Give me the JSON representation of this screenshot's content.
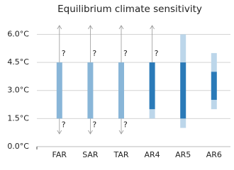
{
  "chart_data": {
    "type": "range",
    "title": "Equilibrium climate sensitivity",
    "categories": [
      "FAR",
      "SAR",
      "TAR",
      "AR4",
      "AR5",
      "AR6"
    ],
    "likely_low": [
      1.5,
      1.5,
      1.5,
      2.0,
      1.5,
      2.5
    ],
    "likely_high": [
      4.5,
      4.5,
      4.5,
      4.5,
      4.5,
      4.0
    ],
    "very_likely_low": [
      null,
      null,
      null,
      1.5,
      1.0,
      2.0
    ],
    "very_likely_high": [
      null,
      null,
      null,
      null,
      6.0,
      5.0
    ],
    "likely_colors": [
      "#89b6d8",
      "#89b6d8",
      "#89b6d8",
      "#2a7ab8",
      "#2a7ab8",
      "#2a7ab8"
    ],
    "very_likely_color": "#bcd6ea",
    "open_upper": [
      true,
      true,
      true,
      true,
      false,
      false
    ],
    "open_lower": [
      true,
      true,
      true,
      false,
      false,
      false
    ],
    "unknown_label": "?",
    "ylim": [
      0,
      6.7
    ],
    "yticks": [
      {
        "value": 0,
        "label": "0.0°C"
      },
      {
        "value": 1.5,
        "label": "1.5°C"
      },
      {
        "value": 3,
        "label": "3.0°C"
      },
      {
        "value": 4.5,
        "label": "4.5°C"
      },
      {
        "value": 6,
        "label": "6.0°C"
      }
    ],
    "grid": true
  }
}
